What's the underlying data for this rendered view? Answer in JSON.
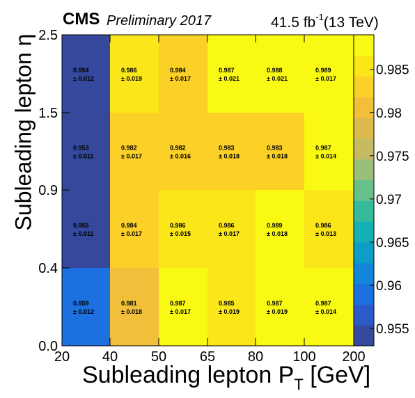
{
  "header": {
    "experiment": "CMS",
    "status": "Preliminary 2017",
    "lumi_prefix": "41.5 fb",
    "lumi_exp": "-1",
    "lumi_suffix": "(13 TeV)"
  },
  "axes": {
    "xlabel_main": "Subleading lepton P",
    "xlabel_sub": "T",
    "xlabel_unit": " [GeV]",
    "ylabel": "Subleading lepton η"
  },
  "chart_data": {
    "type": "heatmap",
    "x_edges": [
      20,
      40,
      50,
      65,
      80,
      100,
      200
    ],
    "y_edges": [
      0.0,
      0.4,
      0.9,
      1.5,
      2.5
    ],
    "x_tick_labels": [
      "20",
      "40",
      "50",
      "65",
      "80",
      "100",
      "200"
    ],
    "y_tick_labels": [
      "0.0",
      "0.4",
      "0.9",
      "1.5",
      "2.5"
    ],
    "rows_bottom_to_top": [
      {
        "values": [
          0.959,
          0.981,
          0.987,
          0.985,
          0.987,
          0.987
        ],
        "errors": [
          "± 0.012",
          "± 0.018",
          "± 0.017",
          "± 0.019",
          "± 0.019",
          "± 0.014"
        ]
      },
      {
        "values": [
          0.955,
          0.984,
          0.986,
          0.986,
          0.989,
          0.986
        ],
        "errors": [
          "± 0.011",
          "± 0.017",
          "± 0.015",
          "± 0.017",
          "± 0.018",
          "± 0.013"
        ]
      },
      {
        "values": [
          0.953,
          0.982,
          0.982,
          0.983,
          0.983,
          0.987
        ],
        "errors": [
          "± 0.011",
          "± 0.017",
          "± 0.016",
          "± 0.018",
          "± 0.018",
          "± 0.014"
        ]
      },
      {
        "values": [
          0.954,
          0.986,
          0.984,
          0.987,
          0.988,
          0.989
        ],
        "errors": [
          "± 0.012",
          "± 0.019",
          "± 0.017",
          "± 0.021",
          "± 0.021",
          "± 0.017"
        ]
      }
    ],
    "colorbar": {
      "range": [
        0.953,
        0.989
      ],
      "tick_values": [
        0.955,
        0.96,
        0.965,
        0.97,
        0.975,
        0.98,
        0.985
      ],
      "tick_labels": [
        "0.955",
        "0.96",
        "0.965",
        "0.97",
        "0.975",
        "0.98",
        "0.985"
      ]
    },
    "palette": [
      "#35489b",
      "#2a5bc9",
      "#1c70df",
      "#1286d8",
      "#0d9dc7",
      "#15b0b3",
      "#36ba9c",
      "#67c08a",
      "#98bf78",
      "#c5bb63",
      "#dcb94d",
      "#f1bf3a",
      "#fbd027",
      "#fbe61a",
      "#f9f914"
    ]
  }
}
